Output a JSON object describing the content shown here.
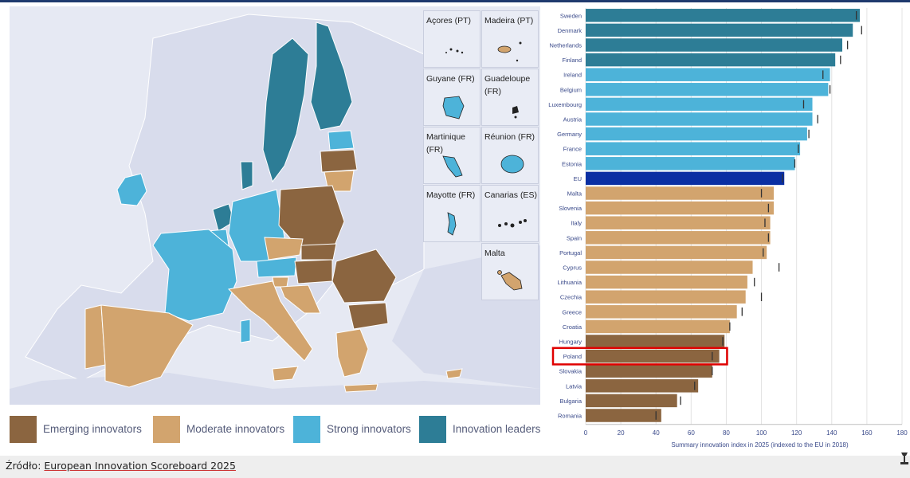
{
  "map": {
    "insets": [
      {
        "label": "Açores (PT)"
      },
      {
        "label": "Madeira (PT)"
      },
      {
        "label": "Guyane (FR)"
      },
      {
        "label": "Guadeloupe (FR)"
      },
      {
        "label": "Martinique (FR)"
      },
      {
        "label": "Réunion (FR)"
      },
      {
        "label": "Mayotte (FR)"
      },
      {
        "label": "Canarias (ES)"
      },
      {
        "label": "Malta"
      }
    ]
  },
  "legend": {
    "items": [
      {
        "label": "Emerging innovators",
        "color": "#8b6540"
      },
      {
        "label": "Moderate innovators",
        "color": "#d2a46e"
      },
      {
        "label": "Strong innovators",
        "color": "#4db3d9"
      },
      {
        "label": "Innovation leaders",
        "color": "#2d7d96"
      }
    ]
  },
  "chart_data": {
    "type": "bar",
    "orientation": "horizontal",
    "xlabel": "Summary innovation index in 2025 (indexed to the EU in 2018)",
    "xlim": [
      0,
      180
    ],
    "xticks": [
      0,
      20,
      40,
      60,
      80,
      100,
      120,
      140,
      160,
      180
    ],
    "grid": true,
    "highlighted_category": "Poland",
    "categories": [
      "Sweden",
      "Denmark",
      "Netherlands",
      "Finland",
      "Ireland",
      "Belgium",
      "Luxembourg",
      "Austria",
      "Germany",
      "France",
      "Estonia",
      "EU",
      "Malta",
      "Slovenia",
      "Italy",
      "Spain",
      "Portugal",
      "Cyprus",
      "Lithuania",
      "Czechia",
      "Greece",
      "Croatia",
      "Hungary",
      "Poland",
      "Slovakia",
      "Latvia",
      "Bulgaria",
      "Romania"
    ],
    "values": [
      156,
      152,
      146,
      142,
      139,
      138,
      129,
      129,
      126,
      122,
      119,
      113,
      107,
      107,
      105,
      105,
      103,
      95,
      92,
      91,
      86,
      82,
      79,
      76,
      72,
      64,
      52,
      43
    ],
    "markers_2018": [
      154,
      157,
      149,
      145,
      135,
      139,
      124,
      132,
      127,
      121,
      119,
      112,
      100,
      104,
      102,
      104,
      101,
      110,
      96,
      100,
      89,
      82,
      78,
      72,
      72,
      62,
      54,
      40
    ],
    "groups": [
      "Innovation leaders",
      "Innovation leaders",
      "Innovation leaders",
      "Innovation leaders",
      "Strong innovators",
      "Strong innovators",
      "Strong innovators",
      "Strong innovators",
      "Strong innovators",
      "Strong innovators",
      "Strong innovators",
      "EU",
      "Moderate innovators",
      "Moderate innovators",
      "Moderate innovators",
      "Moderate innovators",
      "Moderate innovators",
      "Moderate innovators",
      "Moderate innovators",
      "Moderate innovators",
      "Moderate innovators",
      "Moderate innovators",
      "Emerging innovators",
      "Emerging innovators",
      "Emerging innovators",
      "Emerging innovators",
      "Emerging innovators",
      "Emerging innovators"
    ],
    "group_colors": {
      "Innovation leaders": "#2d7d96",
      "Strong innovators": "#4db3d9",
      "EU": "#0a2fa3",
      "Moderate innovators": "#d2a46e",
      "Emerging innovators": "#8b6540"
    },
    "highlight_color": "#e00000"
  },
  "footer": {
    "source_prefix": "Źródło:",
    "source_link": "European Innovation Scoreboard 2025"
  }
}
